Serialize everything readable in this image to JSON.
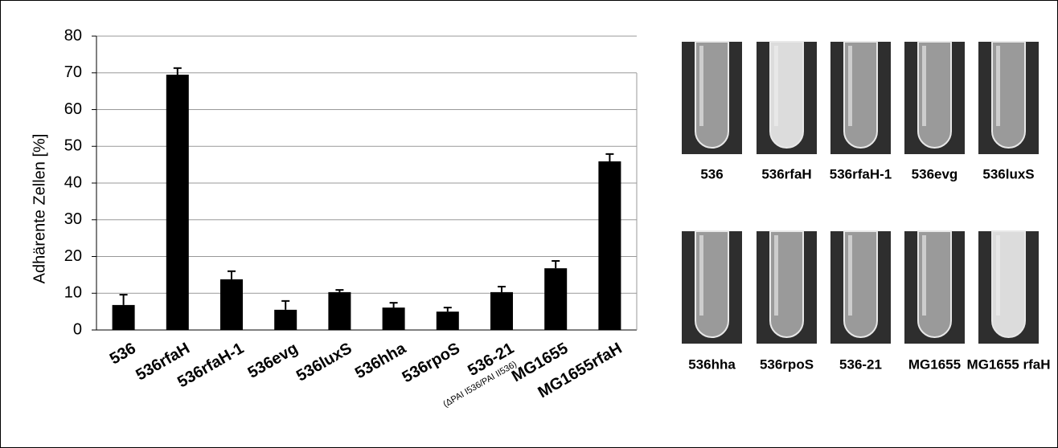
{
  "chart_data": {
    "type": "bar",
    "y_label": "Adhärente Zellen [%]",
    "categories": [
      "536",
      "536rfaH",
      "536rfaH-1",
      "536evg",
      "536luxS",
      "536hha",
      "536rpoS",
      "536-21",
      "MG1655",
      "MG1655rfaH"
    ],
    "category_note": "(ΔPAI I536/PAI II536)",
    "values": [
      6.8,
      69.5,
      13.8,
      5.5,
      10.3,
      6.1,
      5.0,
      10.3,
      16.8,
      45.9
    ],
    "errors": [
      2.8,
      1.8,
      2.2,
      2.4,
      0.6,
      1.3,
      1.1,
      1.5,
      2.0,
      2.0
    ],
    "color": "#000000",
    "ylim": [
      0,
      80
    ],
    "yticks": [
      0,
      10,
      20,
      30,
      40,
      50,
      60,
      70,
      80
    ],
    "grid": true
  },
  "photos": {
    "labels": [
      "536",
      "536rfaH",
      "536rfaH-1",
      "536evg",
      "536luxS",
      "536hha",
      "536rpoS",
      "536-21",
      "MG1655",
      "MG1655 rfaH"
    ]
  }
}
